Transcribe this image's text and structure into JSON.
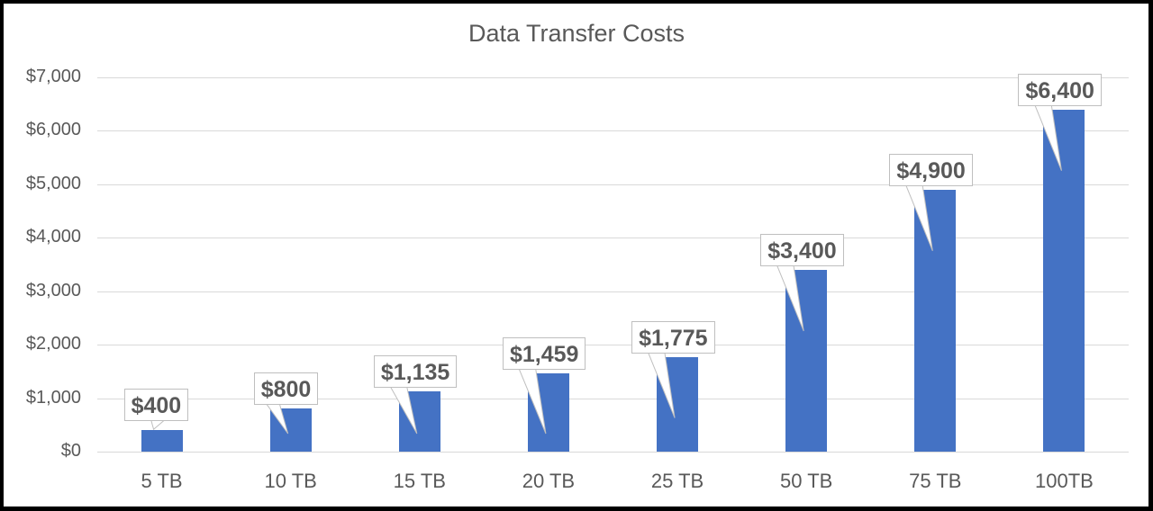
{
  "chart_data": {
    "type": "bar",
    "title": "Data Transfer Costs",
    "categories": [
      "5 TB",
      "10 TB",
      "15 TB",
      "20 TB",
      "25 TB",
      "50 TB",
      "75 TB",
      "100TB"
    ],
    "values": [
      400,
      800,
      1135,
      1459,
      1775,
      3400,
      4900,
      6400
    ],
    "data_labels": [
      "$400",
      "$800",
      "$1,135",
      "$1,459",
      "$1,775",
      "$3,400",
      "$4,900",
      "$6,400"
    ],
    "xlabel": "",
    "ylabel": "",
    "ylim": [
      0,
      7000
    ],
    "yticks": [
      "$0",
      "$1,000",
      "$2,000",
      "$3,000",
      "$4,000",
      "$5,000",
      "$6,000",
      "$7,000"
    ],
    "grid": true,
    "legend": null,
    "colors": {
      "bar": "#4472c4",
      "grid": "#d9d9d9",
      "text": "#595959"
    }
  }
}
